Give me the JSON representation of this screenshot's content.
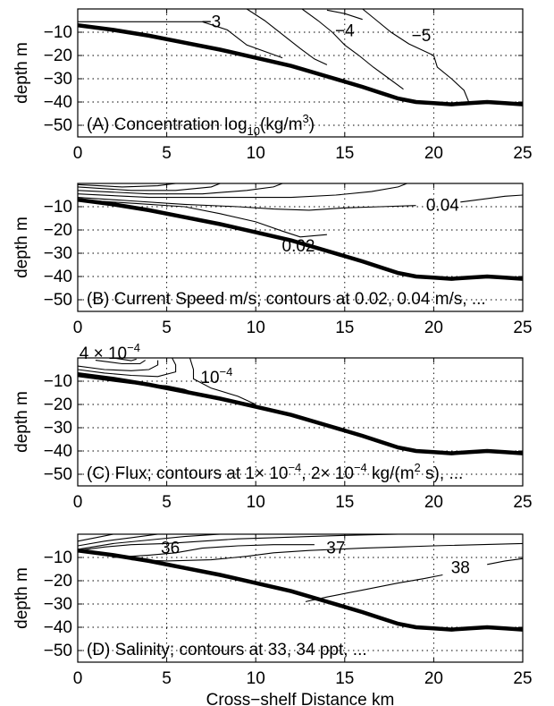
{
  "chart_data": [
    {
      "type": "contour",
      "panel_label": "(A) Concentration log",
      "panel_label_sub": "10",
      "panel_label_tail": "(kg/m",
      "panel_label_sup": "3",
      "panel_label_end": ")",
      "ylabel": "depth m",
      "xlim": [
        0,
        25
      ],
      "ylim": [
        -55,
        0
      ],
      "xticks": [
        0,
        5,
        10,
        15,
        20,
        25
      ],
      "yticks": [
        -10,
        -20,
        -30,
        -40,
        -50
      ],
      "contour_labels": [
        {
          "text": "−3",
          "x": 7.5,
          "y": -5.5
        },
        {
          "text": "−4",
          "x": 15.0,
          "y": -9.5
        },
        {
          "text": "−5",
          "x": 19.3,
          "y": -11.5
        }
      ],
      "contours": [
        [
          [
            0.0,
            -5.5
          ],
          [
            4.0,
            -5.5
          ],
          [
            7.0,
            -5.5
          ],
          [
            8.4,
            -9.0
          ],
          [
            9.5,
            -15.5
          ],
          [
            11.5,
            -21.0
          ]
        ],
        [
          [
            9.5,
            0.0
          ],
          [
            10.5,
            -5.0
          ],
          [
            11.5,
            -11.0
          ],
          [
            12.5,
            -17.0
          ],
          [
            13.3,
            -21.5
          ],
          [
            14.0,
            -24.0
          ]
        ],
        [
          [
            12.6,
            0.0
          ],
          [
            13.5,
            -5.0
          ],
          [
            14.3,
            -10.0
          ],
          [
            15.0,
            -15.5
          ],
          [
            15.8,
            -20.0
          ],
          [
            16.6,
            -25.0
          ],
          [
            17.5,
            -30.0
          ],
          [
            18.3,
            -34.5
          ]
        ],
        [
          [
            14.0,
            -0.5
          ],
          [
            15.0,
            -2.0
          ],
          [
            16.0,
            -4.5
          ]
        ],
        [
          [
            16.0,
            0.0
          ],
          [
            16.8,
            -5.0
          ],
          [
            17.6,
            -10.0
          ],
          [
            18.6,
            -15.0
          ],
          [
            20.0,
            -20.0
          ],
          [
            20.2,
            -25.0
          ],
          [
            21.0,
            -30.0
          ],
          [
            21.7,
            -35.0
          ],
          [
            22.0,
            -40.5
          ]
        ]
      ]
    },
    {
      "type": "contour",
      "panel_label": "(B) Current Speed m/s; contours at 0.02, 0.04 m/s, ...",
      "ylabel": "depth m",
      "xlim": [
        0,
        25
      ],
      "ylim": [
        -55,
        0
      ],
      "xticks": [
        0,
        5,
        10,
        15,
        20,
        25
      ],
      "yticks": [
        -10,
        -20,
        -30,
        -40,
        -50
      ],
      "contour_labels": [
        {
          "text": "0.02",
          "x": 12.4,
          "y": -27.0
        },
        {
          "text": "0.04",
          "x": 20.5,
          "y": -9.5
        }
      ],
      "contours": [
        [
          [
            0.0,
            -7.0
          ],
          [
            3.0,
            -8.5
          ],
          [
            6.0,
            -10.0
          ],
          [
            8.0,
            -13.0
          ],
          [
            10.0,
            -16.5
          ],
          [
            11.5,
            -20.5
          ],
          [
            12.5,
            -23.0
          ],
          [
            14.0,
            -22.0
          ]
        ],
        [
          [
            0.0,
            -6.0
          ],
          [
            3.0,
            -7.5
          ],
          [
            6.0,
            -9.0
          ],
          [
            9.0,
            -10.0
          ],
          [
            11.0,
            -11.0
          ],
          [
            13.0,
            -11.5
          ],
          [
            15.0,
            -10.5
          ],
          [
            17.0,
            -10.0
          ],
          [
            19.0,
            -9.5
          ]
        ],
        [
          [
            21.5,
            -8.0
          ],
          [
            23.0,
            -6.5
          ],
          [
            24.0,
            -5.5
          ],
          [
            25.0,
            -5.0
          ]
        ],
        [
          [
            0.0,
            -4.5
          ],
          [
            4.0,
            -6.0
          ],
          [
            8.0,
            -6.0
          ],
          [
            12.0,
            -6.0
          ],
          [
            14.5,
            -5.0
          ],
          [
            16.5,
            -3.5
          ],
          [
            18.0,
            -1.5
          ],
          [
            18.5,
            0.0
          ]
        ],
        [
          [
            0.0,
            -3.0
          ],
          [
            4.0,
            -4.5
          ],
          [
            7.0,
            -4.5
          ],
          [
            9.5,
            -3.0
          ],
          [
            11.0,
            -1.5
          ],
          [
            11.5,
            0.0
          ]
        ],
        [
          [
            0.0,
            -1.5
          ],
          [
            3.0,
            -3.0
          ],
          [
            5.5,
            -3.0
          ],
          [
            7.5,
            -1.5
          ],
          [
            8.0,
            0.0
          ]
        ],
        [
          [
            0.0,
            -0.5
          ],
          [
            2.5,
            -1.5
          ],
          [
            4.5,
            -1.0
          ],
          [
            5.5,
            0.0
          ]
        ]
      ]
    },
    {
      "type": "contour",
      "panel_label": "(C) Flux; contours at 1× 10",
      "panel_label_sup1": "−4",
      "panel_label_mid": ", 2× 10",
      "panel_label_sup2": "−4",
      "panel_label_tail": " kg/(m",
      "panel_label_sup3": "2",
      "panel_label_end": " s), ...",
      "ylabel": "depth m",
      "xlim": [
        0,
        25
      ],
      "ylim": [
        -55,
        0
      ],
      "xticks": [
        0,
        5,
        10,
        15,
        20,
        25
      ],
      "yticks": [
        -10,
        -20,
        -30,
        -40,
        -50
      ],
      "contour_labels": [
        {
          "text": "4 × 10",
          "sup": "−4",
          "x": 1.8,
          "y": 2.0
        },
        {
          "text": "10",
          "sup": "−4",
          "x": 7.8,
          "y": -8.5
        }
      ],
      "contours": [
        [
          [
            0.0,
            -8.0
          ],
          [
            1.5,
            -9.5
          ],
          [
            3.0,
            -11.0
          ],
          [
            5.0,
            -12.0
          ],
          [
            6.0,
            -13.5
          ],
          [
            7.0,
            -16.5
          ],
          [
            8.5,
            -18.5
          ],
          [
            9.5,
            -19.5
          ],
          [
            10.0,
            -20.0
          ],
          [
            9.0,
            -16.5
          ],
          [
            7.5,
            -13.0
          ],
          [
            6.5,
            -9.0
          ],
          [
            6.5,
            -5.0
          ],
          [
            6.3,
            0.0
          ]
        ],
        [
          [
            0.0,
            -5.0
          ],
          [
            1.5,
            -6.5
          ],
          [
            3.0,
            -7.5
          ],
          [
            4.5,
            -8.0
          ],
          [
            5.5,
            -6.0
          ],
          [
            5.5,
            -3.0
          ],
          [
            5.3,
            0.0
          ]
        ],
        [
          [
            0.0,
            -3.5
          ],
          [
            1.5,
            -5.0
          ],
          [
            3.0,
            -5.5
          ],
          [
            4.0,
            -5.0
          ],
          [
            4.5,
            -3.0
          ],
          [
            4.5,
            -1.0
          ]
        ],
        [
          [
            1.0,
            -1.0
          ],
          [
            2.5,
            -2.5
          ],
          [
            3.5,
            -2.5
          ],
          [
            3.8,
            -1.0
          ]
        ],
        [
          [
            2.0,
            0.0
          ],
          [
            3.0,
            -1.2
          ],
          [
            3.3,
            -0.5
          ]
        ]
      ]
    },
    {
      "type": "contour",
      "panel_label": "(D) Salinity; contours at 33, 34 ppt, ...",
      "ylabel": "depth m",
      "xlabel": "Cross−shelf Distance km",
      "xlim": [
        0,
        25
      ],
      "ylim": [
        -55,
        0
      ],
      "xticks": [
        0,
        5,
        10,
        15,
        20,
        25
      ],
      "yticks": [
        -10,
        -20,
        -30,
        -40,
        -50
      ],
      "contour_labels": [
        {
          "text": "36",
          "x": 5.2,
          "y": -6.0
        },
        {
          "text": "37",
          "x": 14.5,
          "y": -6.0
        },
        {
          "text": "38",
          "x": 21.5,
          "y": -14.5
        }
      ],
      "contours": [
        [
          [
            0.0,
            -7.0
          ],
          [
            1.5,
            -5.5
          ],
          [
            3.0,
            -4.5
          ],
          [
            5.0,
            -4.0
          ],
          [
            7.0,
            -3.0
          ],
          [
            9.0,
            -2.0
          ],
          [
            11.0,
            -1.5
          ],
          [
            13.0,
            -1.0
          ],
          [
            15.0,
            -0.5
          ],
          [
            18.0,
            0.0
          ]
        ],
        [
          [
            0.0,
            -6.5
          ],
          [
            2.0,
            -4.0
          ],
          [
            4.0,
            -2.5
          ],
          [
            6.0,
            -1.0
          ],
          [
            8.0,
            0.0
          ]
        ],
        [
          [
            0.0,
            -5.0
          ],
          [
            1.5,
            -3.0
          ],
          [
            3.0,
            -1.5
          ],
          [
            4.5,
            0.0
          ]
        ],
        [
          [
            0.0,
            -3.0
          ],
          [
            1.0,
            -1.5
          ],
          [
            2.0,
            0.0
          ]
        ],
        [
          [
            2.0,
            -10.0
          ],
          [
            4.0,
            -9.0
          ],
          [
            5.5,
            -8.0
          ],
          [
            7.0,
            -6.0
          ],
          [
            9.0,
            -5.0
          ],
          [
            11.0,
            -4.5
          ],
          [
            13.0,
            -4.5
          ],
          [
            13.3,
            -4.5
          ]
        ],
        [
          [
            3.0,
            -11.0
          ],
          [
            5.0,
            -11.5
          ],
          [
            7.5,
            -11.0
          ],
          [
            9.5,
            -9.5
          ],
          [
            11.0,
            -8.0
          ],
          [
            13.0,
            -7.0
          ],
          [
            16.0,
            -6.0
          ],
          [
            18.0,
            -5.5
          ],
          [
            20.0,
            -5.0
          ],
          [
            25.0,
            -4.0
          ]
        ],
        [
          [
            12.8,
            -29.0
          ],
          [
            14.0,
            -27.0
          ],
          [
            16.0,
            -24.0
          ],
          [
            18.0,
            -21.0
          ],
          [
            19.5,
            -19.0
          ],
          [
            20.5,
            -17.5
          ]
        ],
        [
          [
            23.0,
            -13.0
          ],
          [
            24.0,
            -11.5
          ],
          [
            25.0,
            -10.5
          ]
        ]
      ]
    }
  ],
  "seabed": [
    [
      0.0,
      -7.0
    ],
    [
      2.0,
      -9.0
    ],
    [
      4.0,
      -11.5
    ],
    [
      6.0,
      -14.5
    ],
    [
      8.0,
      -17.5
    ],
    [
      10.0,
      -21.0
    ],
    [
      12.0,
      -24.5
    ],
    [
      14.0,
      -29.0
    ],
    [
      16.0,
      -33.5
    ],
    [
      17.0,
      -36.0
    ],
    [
      18.0,
      -38.5
    ],
    [
      19.0,
      -40.0
    ],
    [
      20.0,
      -40.5
    ],
    [
      21.0,
      -41.0
    ],
    [
      22.0,
      -40.5
    ],
    [
      23.0,
      -40.0
    ],
    [
      24.0,
      -40.5
    ],
    [
      25.0,
      -41.0
    ]
  ]
}
